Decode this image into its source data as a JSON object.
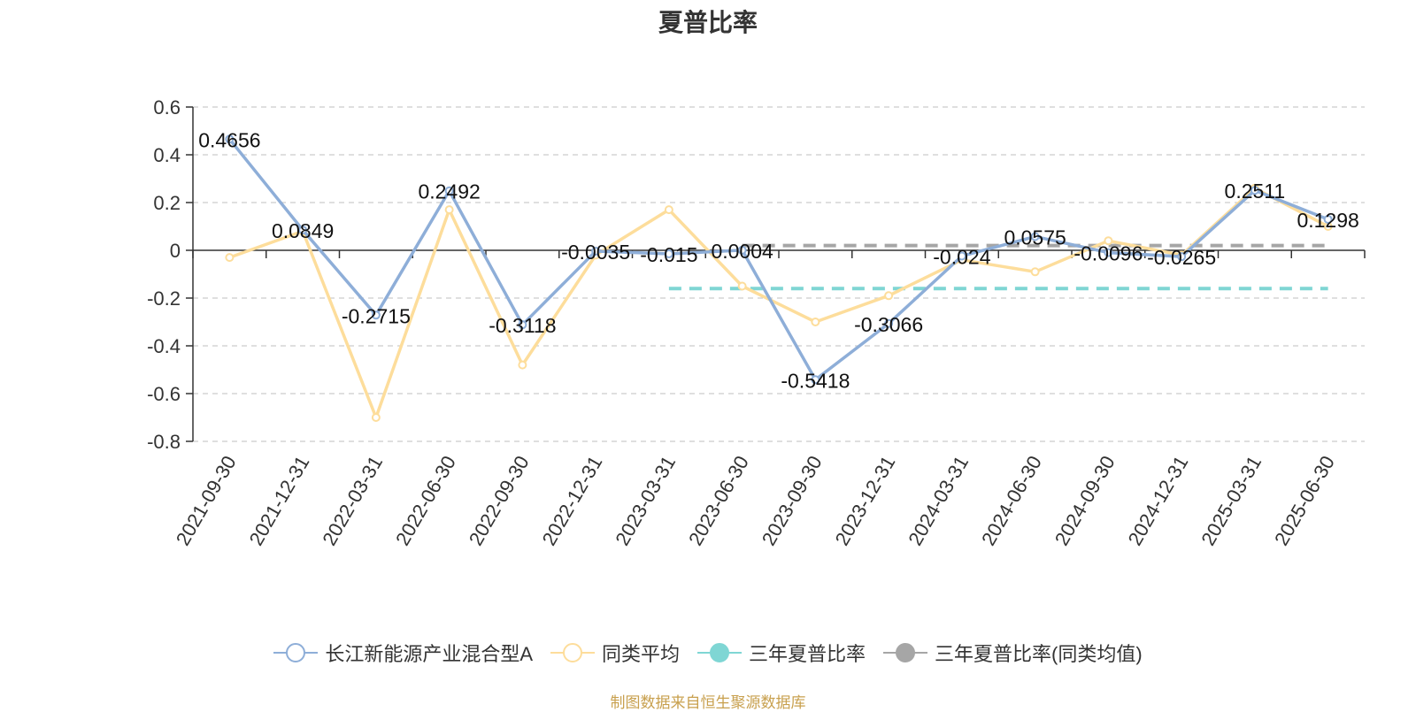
{
  "chart_data": {
    "type": "line",
    "title": "夏普比率",
    "categories": [
      "2021-09-30",
      "2021-12-31",
      "2022-03-31",
      "2022-06-30",
      "2022-09-30",
      "2022-12-31",
      "2023-03-31",
      "2023-06-30",
      "2023-09-30",
      "2023-12-31",
      "2024-03-31",
      "2024-06-30",
      "2024-09-30",
      "2024-12-31",
      "2025-03-31",
      "2025-06-30"
    ],
    "ylim": [
      -0.8,
      0.6
    ],
    "yticks": [
      0.6,
      0.4,
      0.2,
      0,
      -0.2,
      -0.4,
      -0.6,
      -0.8
    ],
    "ytick_labels": [
      "0.6",
      "0.4",
      "0.2",
      "0",
      "-0.2",
      "-0.4",
      "-0.6",
      "-0.8"
    ],
    "grid": true,
    "legend_position": "bottom",
    "series": [
      {
        "name": "长江新能源产业混合型A",
        "color": "#8eaed8",
        "values": [
          0.4656,
          0.0849,
          -0.2715,
          0.2492,
          -0.3118,
          -0.0035,
          -0.015,
          0.0004,
          -0.5418,
          -0.3066,
          -0.024,
          0.0575,
          -0.0096,
          -0.0265,
          0.2511,
          0.1298
        ],
        "labels": [
          "0.4656",
          "0.0849",
          "-0.2715",
          "0.2492",
          "-0.3118",
          "-0.0035",
          "-0.015",
          "0.0004",
          "-0.5418",
          "-0.3066",
          "-0.024",
          "0.0575",
          "-0.0096",
          "-0.0265",
          "0.2511",
          "0.1298"
        ]
      },
      {
        "name": "同类平均",
        "color": "#fddd9b",
        "values": [
          -0.03,
          0.08,
          -0.7,
          0.17,
          -0.48,
          -0.02,
          0.17,
          -0.15,
          -0.3,
          -0.19,
          -0.04,
          -0.09,
          0.04,
          -0.02,
          0.26,
          0.1
        ]
      },
      {
        "name": "三年夏普比率",
        "color": "#7fd6d4",
        "kind": "reference",
        "value": -0.16,
        "from": "2023-03-31",
        "to": "2025-06-30"
      },
      {
        "name": "三年夏普比率(同类均值)",
        "color": "#a6a6a6",
        "kind": "reference",
        "value": 0.02,
        "from": "2023-06-30",
        "to": "2025-06-30"
      }
    ]
  },
  "source_note": "制图数据来自恒生聚源数据库"
}
